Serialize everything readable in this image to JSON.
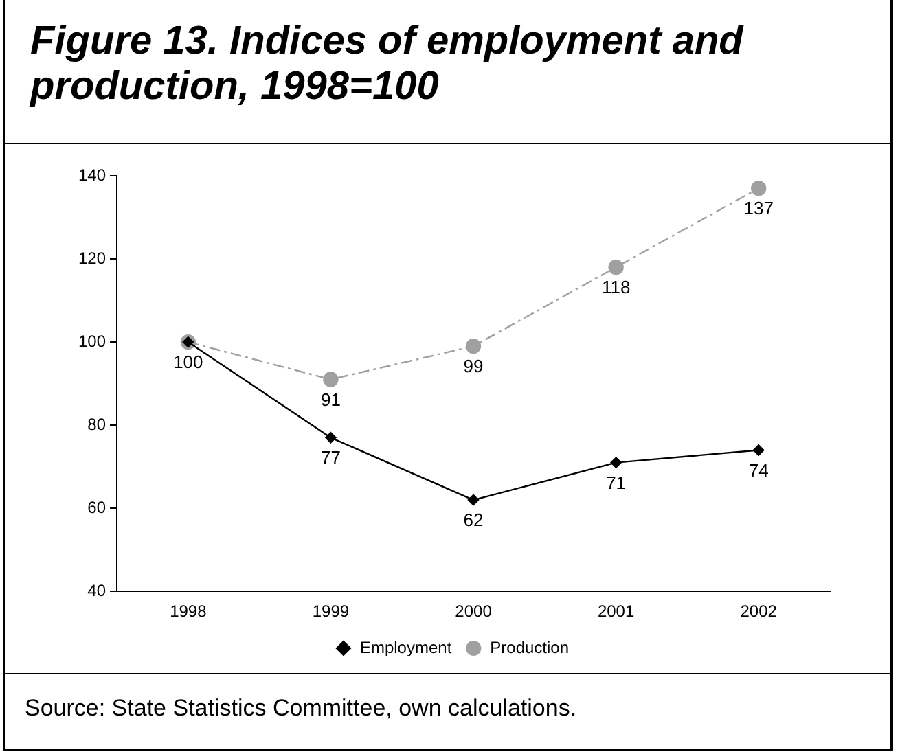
{
  "chart_data": {
    "type": "line",
    "title": "Figure 13. Indices of employment and production, 1998=100",
    "categories": [
      "1998",
      "1999",
      "2000",
      "2001",
      "2002"
    ],
    "series": [
      {
        "name": "Employment",
        "color": "#000000",
        "values": [
          100,
          77,
          62,
          71,
          74
        ],
        "marker": "diamond",
        "line_style": "solid",
        "value_labels": [
          "100",
          "77",
          "62",
          "71",
          "74"
        ]
      },
      {
        "name": "Production",
        "color": "#a0a0a0",
        "values": [
          100,
          91,
          99,
          118,
          137
        ],
        "marker": "circle",
        "line_style": "dashed",
        "value_labels": [
          null,
          "91",
          "99",
          "118",
          "137"
        ]
      }
    ],
    "ylim": [
      40,
      140
    ],
    "yticks": [
      40,
      60,
      80,
      100,
      120,
      140
    ],
    "grid": false,
    "legend": "bottom",
    "annotations": [
      "Source: State Statistics Committee, own calculations."
    ]
  }
}
